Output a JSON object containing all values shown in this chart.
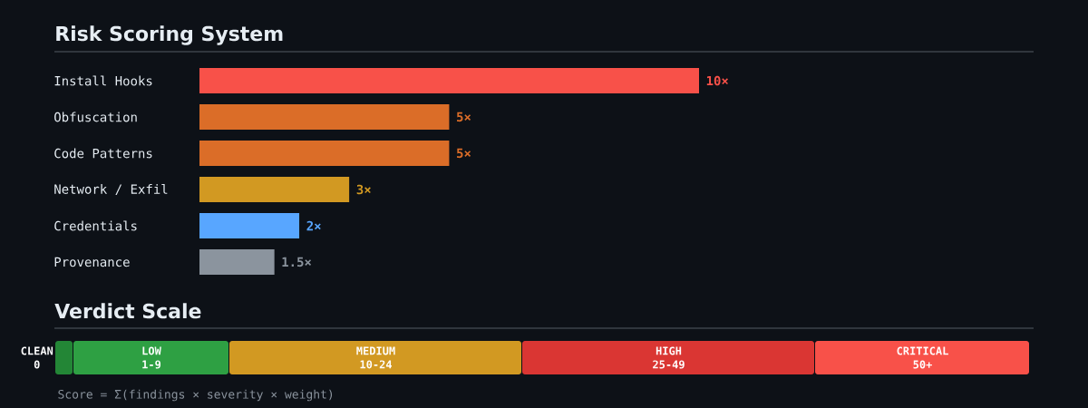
{
  "chart_data": [
    {
      "type": "bar",
      "title": "Risk Scoring System",
      "orientation": "horizontal",
      "categories": [
        "Install Hooks",
        "Obfuscation",
        "Code Patterns",
        "Network / Exfil",
        "Credentials",
        "Provenance"
      ],
      "values": [
        10,
        5,
        5,
        3,
        2,
        1.5
      ],
      "colors": [
        "#f85149",
        "#db6d28",
        "#db6d28",
        "#d29922",
        "#58a6ff",
        "#8b949e"
      ],
      "value_labels": [
        "10×",
        "5×",
        "5×",
        "3×",
        "2×",
        "1.5×"
      ]
    },
    {
      "type": "other",
      "title": "Verdict Scale",
      "categories": [
        "CLEAN",
        "LOW",
        "MEDIUM",
        "HIGH",
        "CRITICAL"
      ],
      "value_labels": [
        "0",
        "1-9",
        "10-24",
        "25-49",
        "50+"
      ],
      "colors": [
        "#238636",
        "#2ea043",
        "#d29922",
        "#da3633",
        "#f85149"
      ],
      "annotations": [
        "Score = Σ(findings × severity × weight)"
      ]
    }
  ]
}
